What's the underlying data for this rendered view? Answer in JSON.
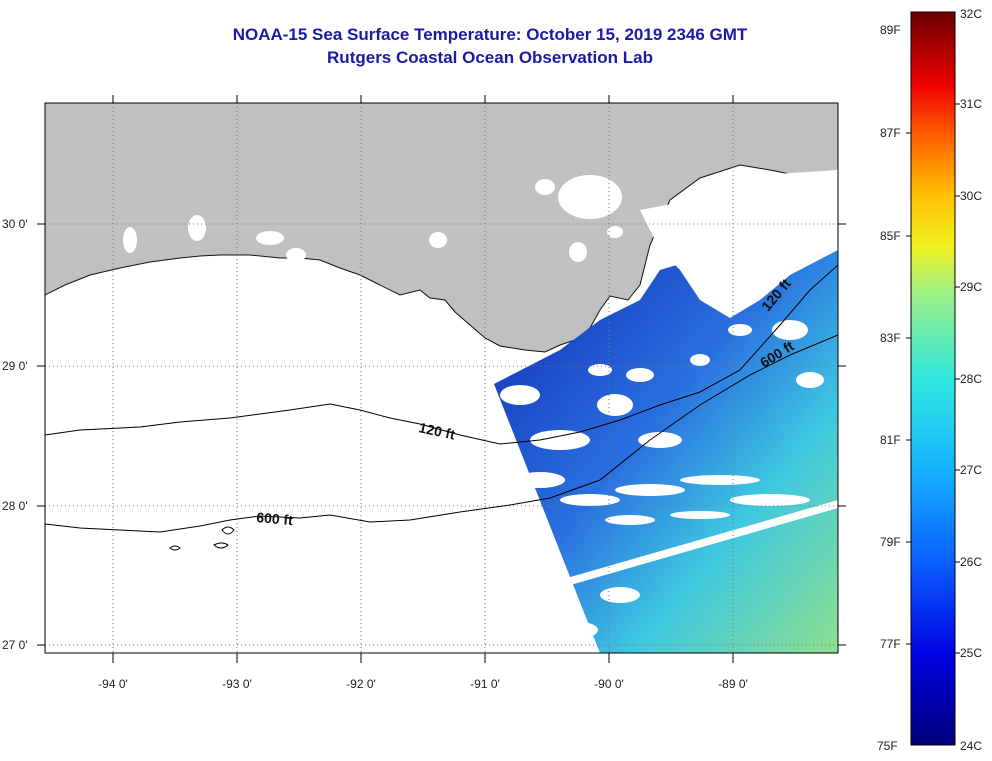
{
  "title": {
    "line1": "NOAA-15 Sea Surface Temperature:  October 15, 2019 2346 GMT",
    "line2": "Rutgers Coastal Ocean Observation Lab"
  },
  "map": {
    "x_ticks": [
      "-94 0'",
      "-93 0'",
      "-92 0'",
      "-91 0'",
      "-90 0'",
      "-89 0'"
    ],
    "y_ticks": [
      "30 0'",
      "29 0'",
      "28 0'",
      "27 0'"
    ],
    "contour_labels": [
      "120 ft",
      "600 ft",
      "120 ft",
      "600 ft"
    ],
    "colors": {
      "land": "#c0c0c0",
      "cloud": "#ffffff",
      "ocean_cool": "#0a1aa8",
      "ocean_warm": "#40c8d8"
    }
  },
  "colorbar": {
    "fahrenheit": [
      "89F",
      "87F",
      "85F",
      "83F",
      "81F",
      "79F",
      "77F",
      "75F"
    ],
    "celsius": [
      "32C",
      "31C",
      "30C",
      "29C",
      "28C",
      "27C",
      "26C",
      "25C",
      "24C"
    ],
    "range_c": [
      24,
      32
    ]
  }
}
